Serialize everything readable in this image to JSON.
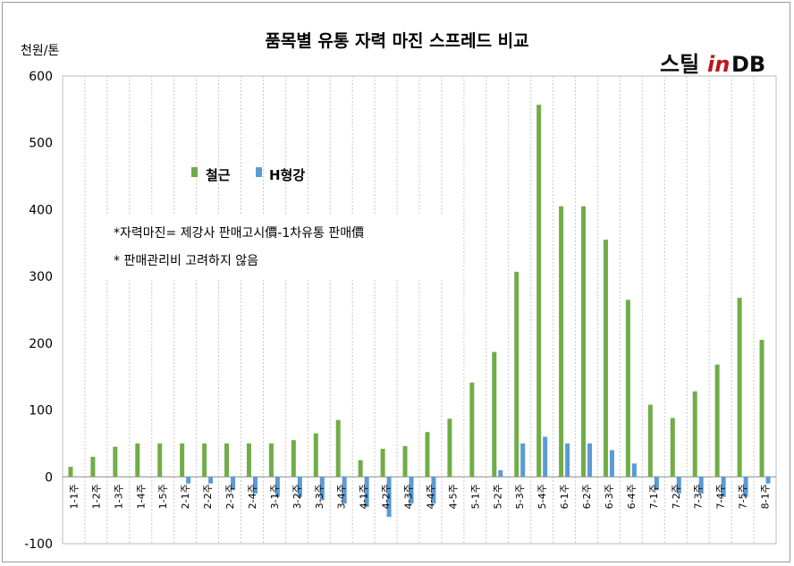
{
  "chart_data": {
    "type": "bar",
    "title": "품목별 유통 자력 마진 스프레드 비교",
    "unit_label": "천원/톤",
    "brand": {
      "text_main": "스틸",
      "text_in": "in",
      "text_db": "DB"
    },
    "ylim": [
      -100,
      600
    ],
    "yticks": [
      -100,
      0,
      100,
      200,
      300,
      400,
      500,
      600
    ],
    "grid": true,
    "legend_position": "upper-left",
    "notes": [
      "*자력마진= 제강사 판매고시價-1차유통 판매價",
      "* 판매관리비 고려하지 않음"
    ],
    "categories": [
      "1-1주",
      "1-2주",
      "1-3주",
      "1-4주",
      "1-5주",
      "2-1주",
      "2-2주",
      "2-3주",
      "2-4주",
      "3-1주",
      "3-2주",
      "3-3주",
      "3-4주",
      "4-1주",
      "4-2주",
      "4-3주",
      "4-4주",
      "4-5주",
      "5-1주",
      "5-2주",
      "5-3주",
      "5-4주",
      "6-1주",
      "6-2주",
      "6-3주",
      "6-4주",
      "7-1주",
      "7-2주",
      "7-3주",
      "7-4주",
      "7-5주",
      "8-1주"
    ],
    "series": [
      {
        "name": "철근",
        "color": "#70ad47",
        "values": [
          15,
          30,
          45,
          50,
          50,
          50,
          50,
          50,
          50,
          50,
          55,
          65,
          85,
          25,
          42,
          46,
          67,
          87,
          141,
          187,
          307,
          557,
          405,
          405,
          355,
          265,
          108,
          88,
          128,
          168,
          268,
          205
        ]
      },
      {
        "name": "H형강",
        "color": "#5b9bd5",
        "values": [
          0,
          0,
          0,
          0,
          0,
          -10,
          -10,
          -20,
          -25,
          -30,
          -30,
          -35,
          -40,
          -45,
          -60,
          -40,
          -40,
          0,
          0,
          10,
          50,
          60,
          50,
          50,
          40,
          20,
          -20,
          -25,
          -25,
          -30,
          -30,
          -10
        ]
      }
    ]
  }
}
